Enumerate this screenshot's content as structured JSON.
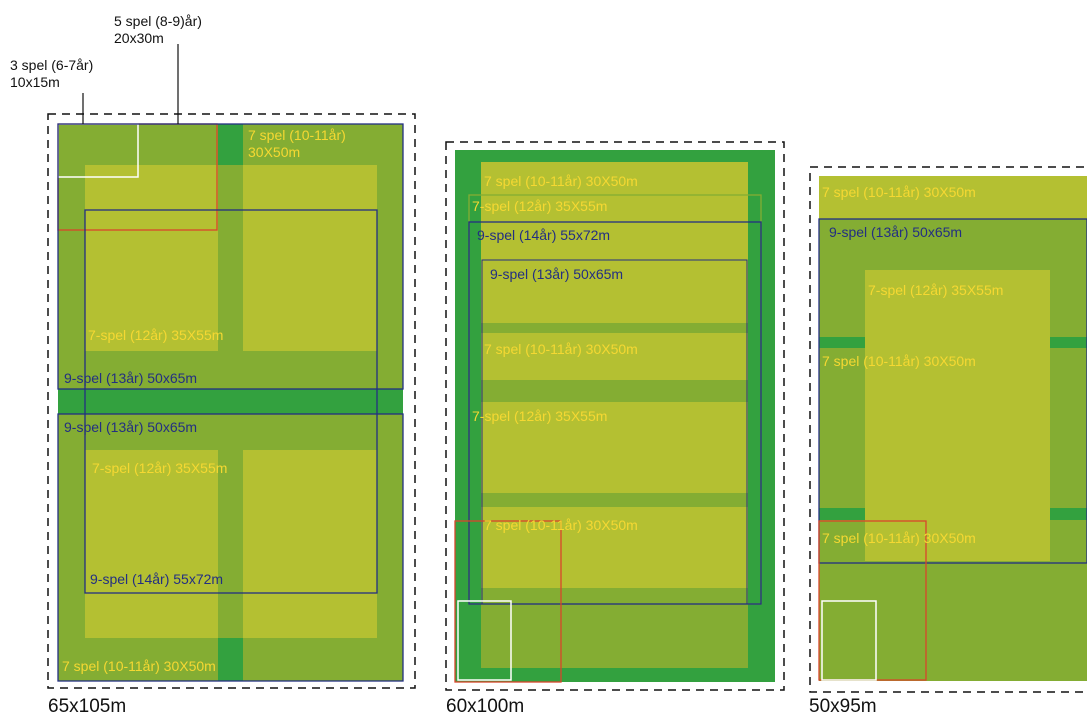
{
  "colors": {
    "bright_green": "#33a13f",
    "mid_green": "#84ad33",
    "yellow_green": "#b4c032",
    "yellow_text": "#f5d832",
    "navy": "#232f82",
    "red": "#d9452b",
    "white": "#ffffff",
    "dashed": "#111111"
  },
  "top_labels": {
    "five_a": "5 spel (8-9)år)",
    "five_b": "20x30m",
    "three_a": "3 spel (6-7år)",
    "three_b": "10x15m"
  },
  "field_a": {
    "dimension": "65x105m",
    "label_7_top_a": "7 spel (10-11år)",
    "label_7_top_b": "30X50m",
    "label_7_12_upper": "7-spel (12år) 35X55m",
    "label_9_13_upper": "9-spel (13år) 50x65m",
    "label_9_13_lower": "9-spel (13år) 50x65m",
    "label_7_12_lower": "7-spel (12år) 35X55m",
    "label_9_14": "9-spel (14år) 55x72m",
    "label_7_bottom": "7 spel (10-11år) 30X50m"
  },
  "field_b": {
    "dimension": "60x100m",
    "label_7_a": "7 spel (10-11år) 30X50m",
    "label_7_12_a": "7-spel (12år) 35X55m",
    "label_9_14": "9-spel (14år) 55x72m",
    "label_9_13": "9-spel (13år) 50x65m",
    "label_7_b": "7 spel (10-11år) 30X50m",
    "label_7_12_b": "7-spel (12år) 35X55m",
    "label_7_c": "7 spel (10-11år) 30X50m"
  },
  "field_c": {
    "dimension": "50x95m",
    "label_7_a": "7 spel (10-11år) 30X50m",
    "label_9_13": "9-spel (13år) 50x65m",
    "label_7_12": "7-spel (12år) 35X55m",
    "label_7_b": "7 spel (10-11år) 30X50m",
    "label_7_c": "7 spel (10-11år) 30X50m"
  }
}
